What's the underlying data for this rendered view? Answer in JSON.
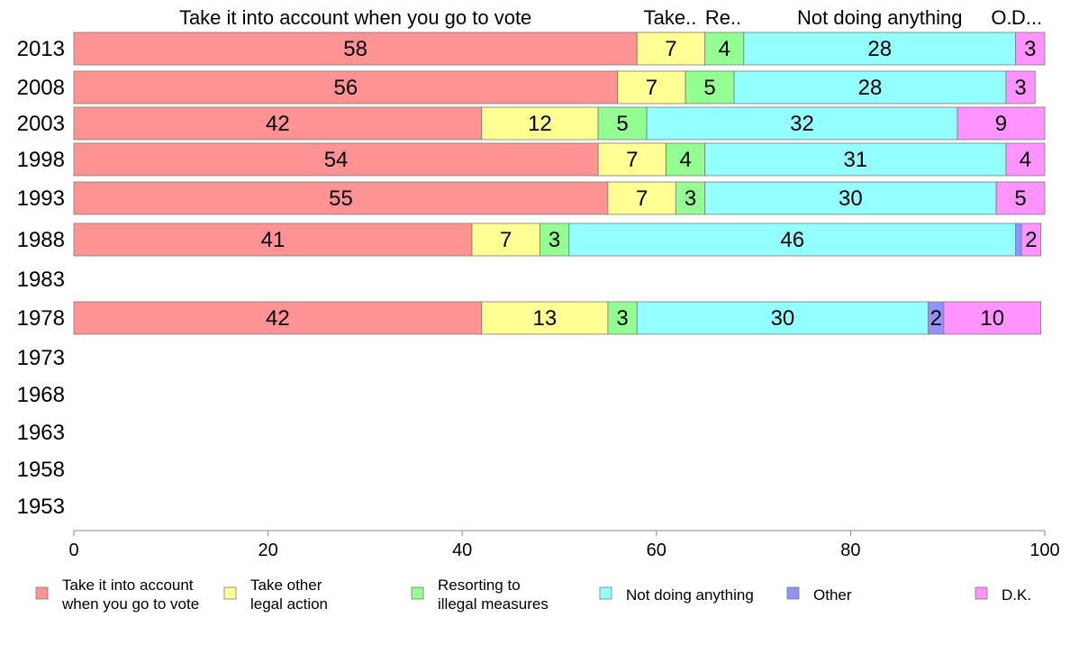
{
  "chart_data": {
    "type": "bar",
    "orientation": "horizontal",
    "stacked": true,
    "categories": [
      "2013",
      "2008",
      "2003",
      "1998",
      "1993",
      "1988",
      "1983",
      "1978",
      "1973",
      "1968",
      "1963",
      "1958",
      "1953"
    ],
    "series": [
      {
        "name": "Take it into account when you go to vote",
        "color": "#ff9393",
        "values": [
          58,
          56,
          42,
          54,
          55,
          41,
          null,
          42,
          null,
          null,
          null,
          null,
          null
        ]
      },
      {
        "name": "Take other legal action",
        "color": "#ffff93",
        "values": [
          7,
          7,
          12,
          7,
          7,
          7,
          null,
          13,
          null,
          null,
          null,
          null,
          null
        ]
      },
      {
        "name": "Resorting to illegal measures",
        "color": "#93ff93",
        "values": [
          4,
          5,
          5,
          4,
          3,
          3,
          null,
          3,
          null,
          null,
          null,
          null,
          null
        ]
      },
      {
        "name": "Not doing anything",
        "color": "#93ffff",
        "values": [
          28,
          28,
          32,
          31,
          30,
          46,
          null,
          30,
          null,
          null,
          null,
          null,
          null
        ]
      },
      {
        "name": "Other",
        "color": "#9393ff",
        "values": [
          0,
          0,
          0,
          0,
          0,
          0.6,
          null,
          1.6,
          null,
          null,
          null,
          null,
          null
        ]
      },
      {
        "name": "D.K.",
        "color": "#ff93ff",
        "values": [
          3,
          3,
          9,
          4,
          5,
          2,
          null,
          10,
          null,
          null,
          null,
          null,
          null
        ]
      }
    ],
    "segment_labels": [
      [
        "58",
        "7",
        "4",
        "28",
        "",
        "3"
      ],
      [
        "56",
        "7",
        "5",
        "28",
        "",
        "3"
      ],
      [
        "42",
        "12",
        "5",
        "32",
        "",
        "9"
      ],
      [
        "54",
        "7",
        "4",
        "31",
        "",
        "4"
      ],
      [
        "55",
        "7",
        "3",
        "30",
        "",
        "5"
      ],
      [
        "41",
        "7",
        "3",
        "46",
        "",
        "2"
      ],
      [
        "",
        "",
        "",
        "",
        "",
        ""
      ],
      [
        "42",
        "13",
        "3",
        "30",
        "2",
        "10"
      ],
      [
        "",
        "",
        "",
        "",
        "",
        ""
      ],
      [
        "",
        "",
        "",
        "",
        "",
        ""
      ],
      [
        "",
        "",
        "",
        "",
        "",
        ""
      ],
      [
        "",
        "",
        "",
        "",
        "",
        ""
      ],
      [
        "",
        "",
        "",
        "",
        "",
        ""
      ]
    ],
    "column_headers": [
      "Take it into account when you go to vote",
      "Take..",
      "Re..",
      "Not doing anything",
      "O..",
      "D..."
    ],
    "legend_labels": [
      [
        "Take it into account",
        "when you go to vote"
      ],
      [
        "Take other",
        "legal action"
      ],
      [
        "Resorting to",
        "illegal measures"
      ],
      [
        "Not doing anything"
      ],
      [
        "Other"
      ],
      [
        "D.K."
      ]
    ],
    "xlim": [
      0,
      100
    ],
    "xticks": [
      0,
      20,
      40,
      60,
      80,
      100
    ],
    "grid": false,
    "legend_position": "bottom"
  }
}
